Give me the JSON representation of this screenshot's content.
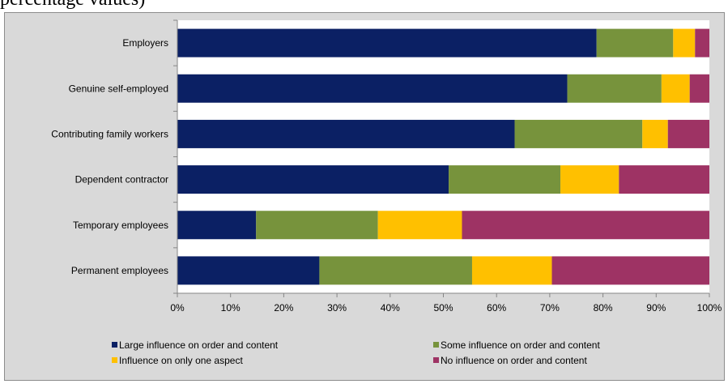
{
  "caption": "percentage values)",
  "chart_data": {
    "type": "bar",
    "orientation": "horizontal",
    "stacked": true,
    "categories": [
      "Employers",
      "Genuine self-employed",
      "Contributing family workers",
      "Dependent contractor",
      "Temporary employees",
      "Permanent employees"
    ],
    "series": [
      {
        "name": "Large influence on order and content",
        "color": "#0b2064",
        "values": [
          78.8,
          73.3,
          63.4,
          51.0,
          14.8,
          26.7
        ]
      },
      {
        "name": "Some influence on order and content",
        "color": "#77933c",
        "values": [
          14.4,
          17.7,
          24.0,
          21.0,
          22.9,
          28.7
        ]
      },
      {
        "name": "Influence on only one aspect",
        "color": "#ffc000",
        "values": [
          4.1,
          5.3,
          4.8,
          11.0,
          15.8,
          15.0
        ]
      },
      {
        "name": "No influence on order and content",
        "color": "#9e3364",
        "values": [
          2.7,
          3.7,
          7.8,
          17.0,
          46.5,
          29.6
        ]
      }
    ],
    "xlim": [
      0,
      100
    ],
    "xticks": [
      "0%",
      "10%",
      "20%",
      "30%",
      "40%",
      "50%",
      "60%",
      "70%",
      "80%",
      "90%",
      "100%"
    ],
    "legend_position": "bottom",
    "grid": false
  }
}
